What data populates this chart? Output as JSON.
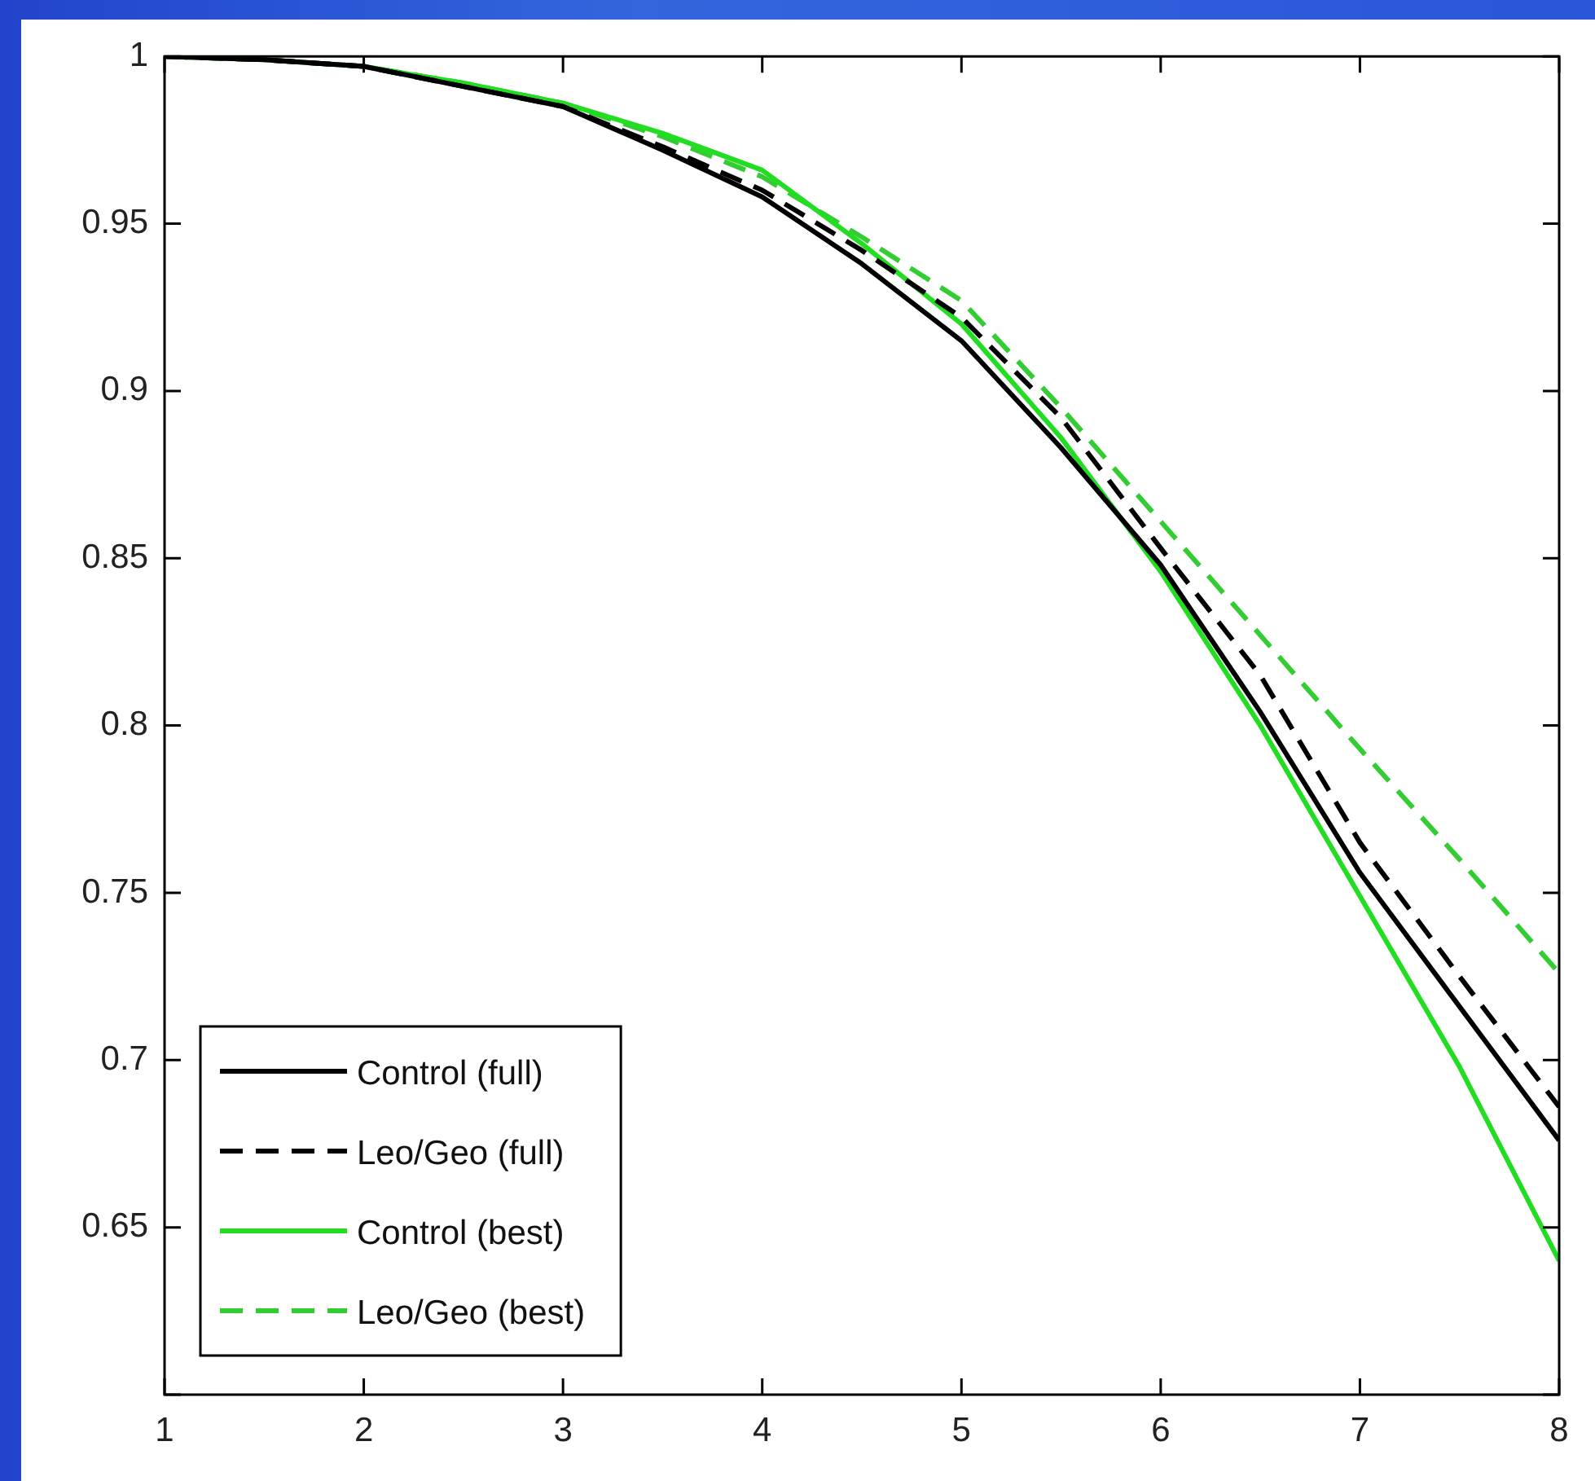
{
  "chart_data": {
    "type": "line",
    "xlim": [
      1,
      8
    ],
    "xticks": [
      1,
      2,
      3,
      4,
      5,
      6,
      7,
      8
    ],
    "ylim": [
      0.6,
      1
    ],
    "yticks": [
      {
        "value": 0.6,
        "label": null
      },
      0.65,
      0.7,
      0.75,
      0.8,
      0.85,
      0.9,
      0.95,
      1
    ],
    "grid": false,
    "legend": "bottom left",
    "marker": "none",
    "series": [
      {
        "name": "Control (full)",
        "color": "#000000",
        "line_style": "solid",
        "x": [
          1,
          1.5,
          2,
          2.5,
          3,
          3.5,
          4,
          4.5,
          5,
          5.5,
          6,
          6.5,
          7,
          7.5,
          8
        ],
        "values": [
          1,
          0.999,
          0.997,
          0.991,
          0.985,
          0.972,
          0.958,
          0.938,
          0.915,
          0.883,
          0.848,
          0.804,
          0.756,
          0.716,
          0.676
        ]
      },
      {
        "name": "Leo/Geo (full)",
        "color": "#000000",
        "line_style": "dashed",
        "x": [
          1,
          1.5,
          2,
          2.5,
          3,
          3.5,
          4,
          4.5,
          5,
          5.5,
          6,
          6.5,
          7,
          7.5,
          8
        ],
        "values": [
          1,
          0.999,
          0.997,
          0.991,
          0.985,
          0.973,
          0.96,
          0.942,
          0.922,
          0.892,
          0.853,
          0.815,
          0.765,
          0.725,
          0.686
        ]
      },
      {
        "name": "Control (best)",
        "color": "#22dd22",
        "line_style": "solid",
        "x": [
          1,
          1.5,
          2,
          2.5,
          3,
          3.5,
          4,
          4.5,
          5,
          5.5,
          6,
          6.5,
          7,
          7.5,
          8
        ],
        "values": [
          1,
          0.999,
          0.997,
          0.992,
          0.986,
          0.977,
          0.966,
          0.944,
          0.92,
          0.886,
          0.846,
          0.8,
          0.749,
          0.698,
          0.64
        ]
      },
      {
        "name": "Leo/Geo (best)",
        "color": "#33cc33",
        "line_style": "dashed",
        "x": [
          1,
          1.5,
          2,
          2.5,
          3,
          3.5,
          4,
          4.5,
          5,
          5.5,
          6,
          6.5,
          7,
          7.5,
          8
        ],
        "values": [
          1,
          0.999,
          0.997,
          0.992,
          0.986,
          0.976,
          0.964,
          0.946,
          0.927,
          0.895,
          0.861,
          0.827,
          0.793,
          0.76,
          0.726
        ]
      }
    ]
  }
}
